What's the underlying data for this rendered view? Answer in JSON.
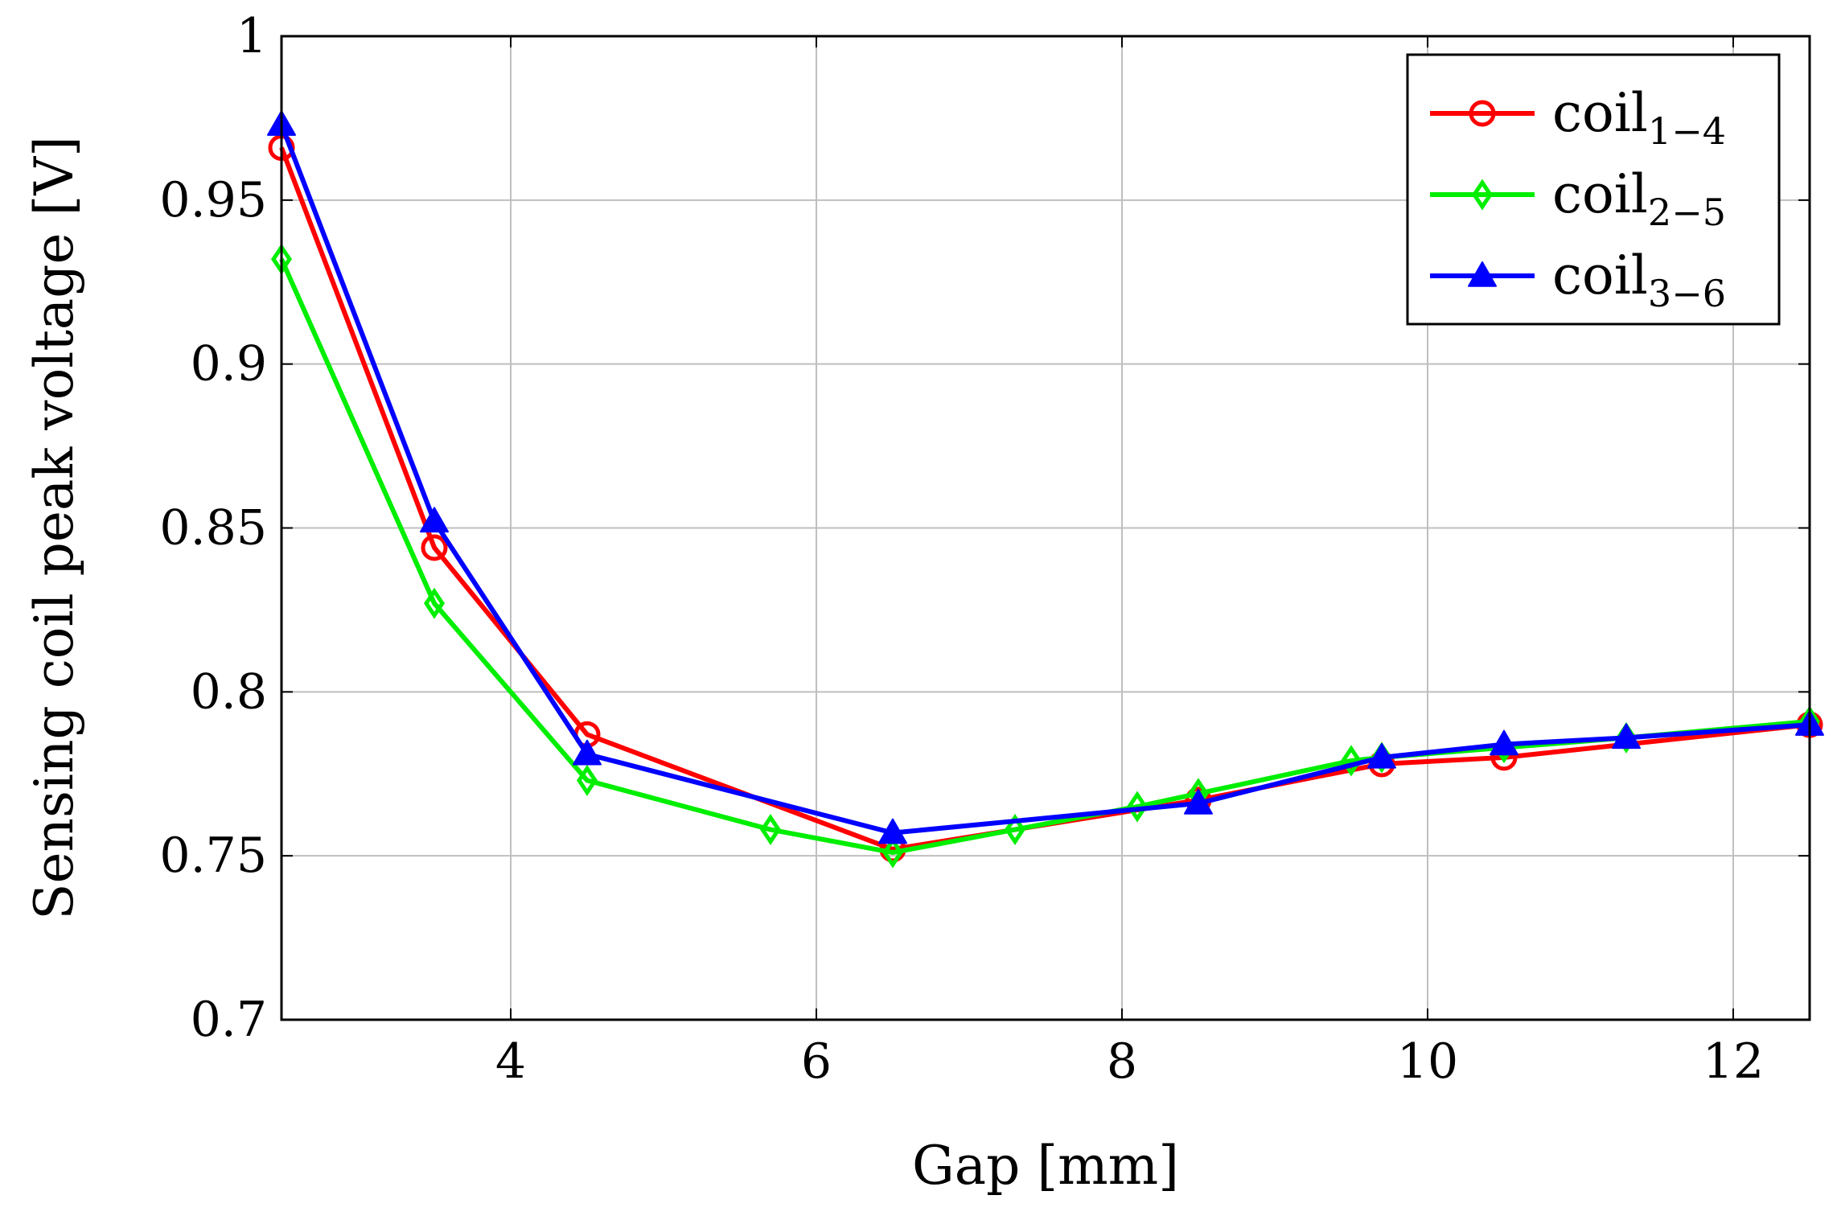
{
  "chart_data": {
    "type": "line",
    "title": "",
    "xlabel": "Gap [mm]",
    "ylabel": "Sensing coil peak voltage [V]",
    "xlim": [
      2.5,
      12.5
    ],
    "ylim": [
      0.7,
      1.0
    ],
    "xticks": [
      4,
      6,
      8,
      10,
      12
    ],
    "yticks": [
      0.7,
      0.75,
      0.8,
      0.85,
      0.9,
      0.95,
      1.0
    ],
    "xtick_labels": [
      "4",
      "6",
      "8",
      "10",
      "12"
    ],
    "ytick_labels": [
      "0.7",
      "0.75",
      "0.8",
      "0.85",
      "0.9",
      "0.95",
      "1"
    ],
    "grid": true,
    "legend_position": "top-right",
    "series": [
      {
        "name": "coil",
        "subscript": "1−4",
        "color": "#ff0000",
        "marker": "circle",
        "x": [
          2.5,
          3.5,
          4.5,
          6.5,
          8.5,
          9.7,
          10.5,
          12.5
        ],
        "y": [
          0.966,
          0.844,
          0.787,
          0.752,
          0.767,
          0.778,
          0.78,
          0.79
        ]
      },
      {
        "name": "coil",
        "subscript": "2−5",
        "color": "#00ee00",
        "marker": "diamond",
        "x": [
          2.5,
          3.5,
          4.5,
          5.7,
          6.5,
          7.3,
          8.1,
          8.5,
          9.5,
          9.7,
          10.5,
          11.3,
          12.5
        ],
        "y": [
          0.932,
          0.827,
          0.773,
          0.758,
          0.751,
          0.758,
          0.765,
          0.769,
          0.779,
          0.78,
          0.783,
          0.786,
          0.791
        ]
      },
      {
        "name": "coil",
        "subscript": "3−6",
        "color": "#0000ff",
        "marker": "triangle",
        "x": [
          2.5,
          3.5,
          4.5,
          6.5,
          8.5,
          9.7,
          10.5,
          11.3,
          12.5
        ],
        "y": [
          0.973,
          0.852,
          0.781,
          0.757,
          0.766,
          0.78,
          0.784,
          0.786,
          0.79
        ]
      }
    ]
  }
}
